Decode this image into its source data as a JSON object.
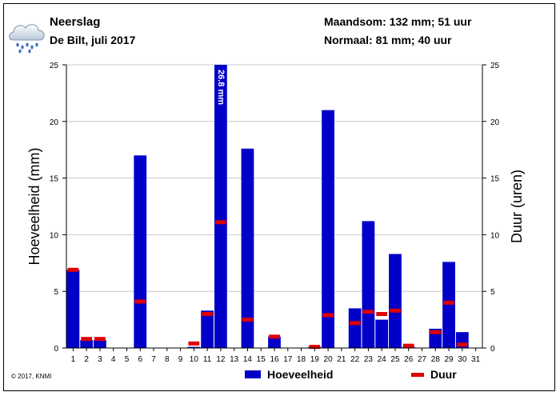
{
  "header": {
    "title": "Neerslag",
    "subtitle": "De Bilt, juli 2017",
    "maandsom": "Maandsom: 132 mm; 51 uur",
    "normaal": "Normaal: 81 mm; 40 uur"
  },
  "footer": {
    "copyright": "© 2017, KNMI"
  },
  "colors": {
    "bar": "#0000c8",
    "duration": "#e00000"
  },
  "icons": {
    "weather": "rain-cloud-icon"
  },
  "chart_data": {
    "type": "bar",
    "categories": [
      "1",
      "2",
      "3",
      "4",
      "5",
      "6",
      "7",
      "8",
      "9",
      "10",
      "11",
      "12",
      "13",
      "14",
      "15",
      "16",
      "17",
      "18",
      "19",
      "20",
      "21",
      "22",
      "23",
      "24",
      "25",
      "26",
      "27",
      "28",
      "29",
      "30",
      "31"
    ],
    "ylabel": "Hoeveelheid (mm)",
    "y2label": "Duur (uren)",
    "ylim": [
      0,
      25
    ],
    "y2lim": [
      0,
      25
    ],
    "yticks": [
      0,
      5,
      10,
      15,
      20,
      25
    ],
    "grid": true,
    "overflow_label": "26.8 mm",
    "series": [
      {
        "name": "Hoeveelheid",
        "values": [
          6.9,
          0.7,
          0.7,
          0,
          0,
          17.0,
          0,
          0,
          0,
          0.1,
          3.3,
          26.8,
          0,
          17.6,
          0,
          1.0,
          0,
          0,
          0.1,
          21.0,
          0,
          3.5,
          11.2,
          2.5,
          8.3,
          0.1,
          0,
          1.7,
          7.6,
          1.4,
          0
        ]
      },
      {
        "name": "Duur",
        "values": [
          6.9,
          0.8,
          0.8,
          0,
          0,
          4.1,
          0,
          0,
          0,
          0.4,
          3.0,
          11.1,
          0,
          2.5,
          0,
          1.0,
          0,
          0,
          0.1,
          2.9,
          0,
          2.2,
          3.2,
          3.0,
          3.3,
          0.2,
          0,
          1.4,
          4.0,
          0.3,
          0
        ]
      }
    ]
  }
}
